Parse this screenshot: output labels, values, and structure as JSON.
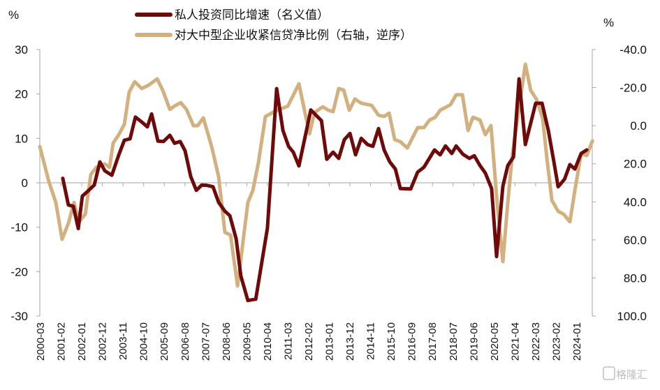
{
  "chart_data": {
    "type": "line",
    "title": "",
    "left_unit": "%",
    "right_unit": "%",
    "y_left": {
      "lim": [
        -30,
        30
      ],
      "ticks": [
        30,
        20,
        10,
        0,
        -10,
        -20,
        -30
      ],
      "tick_labels": [
        "30",
        "20",
        "10",
        "0",
        "-10",
        "-20",
        "-30"
      ]
    },
    "y_right": {
      "lim": [
        -40,
        100
      ],
      "inverted": true,
      "ticks": [
        -40,
        -20,
        0,
        20,
        40,
        60,
        80,
        100
      ],
      "tick_labels": [
        "-40.0",
        "-20.0",
        "0.0",
        "20.0",
        "40.0",
        "60.0",
        "80.0",
        "100.0"
      ]
    },
    "x_tick_labels": [
      "2000-03",
      "2001-02",
      "2002-01",
      "2002-12",
      "2003-11",
      "2004-10",
      "2005-09",
      "2006-08",
      "2007-07",
      "2008-06",
      "2009-05",
      "2010-04",
      "2011-03",
      "2012-02",
      "2013-01",
      "2013-12",
      "2014-11",
      "2015-10",
      "2016-09",
      "2017-08",
      "2018-07",
      "2019-06",
      "2020-05",
      "2021-04",
      "2022-03",
      "2023-02",
      "2024-01"
    ],
    "x_range_years": [
      2000.17,
      2024.71
    ],
    "legend_position": "top-center",
    "series": [
      {
        "name": "私人投资同比增速（名义值）",
        "axis": "left",
        "color": "#6e0a0a",
        "points": [
          [
            2001.16,
            1.0
          ],
          [
            2001.41,
            -5.0
          ],
          [
            2001.63,
            -5.3
          ],
          [
            2001.85,
            -10.3
          ],
          [
            2002.03,
            -3.0
          ],
          [
            2002.25,
            -2.0
          ],
          [
            2002.56,
            -0.5
          ],
          [
            2002.81,
            4.7
          ],
          [
            2003.03,
            2.7
          ],
          [
            2003.34,
            1.7
          ],
          [
            2003.65,
            6.3
          ],
          [
            2003.9,
            9.6
          ],
          [
            2004.15,
            9.9
          ],
          [
            2004.39,
            14.8
          ],
          [
            2004.67,
            13.7
          ],
          [
            2004.92,
            12.6
          ],
          [
            2005.11,
            15.5
          ],
          [
            2005.39,
            9.4
          ],
          [
            2005.64,
            9.3
          ],
          [
            2005.92,
            10.7
          ],
          [
            2006.13,
            8.9
          ],
          [
            2006.38,
            9.3
          ],
          [
            2006.6,
            7.2
          ],
          [
            2006.85,
            1.4
          ],
          [
            2007.1,
            -1.7
          ],
          [
            2007.34,
            -0.5
          ],
          [
            2007.59,
            -0.6
          ],
          [
            2007.84,
            -0.9
          ],
          [
            2008.09,
            -4.4
          ],
          [
            2008.37,
            -6.4
          ],
          [
            2008.59,
            -7.4
          ],
          [
            2008.87,
            -12.6
          ],
          [
            2009.08,
            -21.0
          ],
          [
            2009.39,
            -26.5
          ],
          [
            2009.74,
            -26.2
          ],
          [
            2010.26,
            -10.2
          ],
          [
            2010.67,
            21.2
          ],
          [
            2010.95,
            11.8
          ],
          [
            2011.2,
            8.2
          ],
          [
            2011.41,
            6.9
          ],
          [
            2011.66,
            3.8
          ],
          [
            2012.19,
            16.4
          ],
          [
            2012.66,
            14.0
          ],
          [
            2012.9,
            5.3
          ],
          [
            2013.18,
            6.9
          ],
          [
            2013.43,
            5.5
          ],
          [
            2013.68,
            9.7
          ],
          [
            2013.93,
            11.1
          ],
          [
            2014.18,
            6.3
          ],
          [
            2014.43,
            10.0
          ],
          [
            2014.71,
            8.6
          ],
          [
            2014.95,
            8.2
          ],
          [
            2015.2,
            12.2
          ],
          [
            2015.45,
            7.4
          ],
          [
            2015.7,
            4.7
          ],
          [
            2015.95,
            3.1
          ],
          [
            2016.17,
            -1.3
          ],
          [
            2016.63,
            -1.4
          ],
          [
            2016.94,
            2.4
          ],
          [
            2017.22,
            3.5
          ],
          [
            2017.69,
            7.4
          ],
          [
            2017.94,
            6.3
          ],
          [
            2018.18,
            8.3
          ],
          [
            2018.46,
            6.6
          ],
          [
            2018.65,
            8.3
          ],
          [
            2018.96,
            6.4
          ],
          [
            2019.24,
            5.5
          ],
          [
            2019.46,
            6.1
          ],
          [
            2019.71,
            3.9
          ],
          [
            2019.95,
            2.2
          ],
          [
            2020.23,
            -1.3
          ],
          [
            2020.45,
            -16.6
          ],
          [
            2020.73,
            -0.8
          ],
          [
            2020.95,
            3.9
          ],
          [
            2021.2,
            5.8
          ],
          [
            2021.45,
            23.4
          ],
          [
            2021.73,
            8.6
          ],
          [
            2022.19,
            17.9
          ],
          [
            2022.47,
            17.9
          ],
          [
            2022.75,
            11.8
          ],
          [
            2022.97,
            5.5
          ],
          [
            2023.19,
            -0.9
          ],
          [
            2023.47,
            0.8
          ],
          [
            2023.71,
            4.1
          ],
          [
            2023.93,
            3.1
          ],
          [
            2024.21,
            6.6
          ],
          [
            2024.46,
            7.4
          ]
        ]
      },
      {
        "name": "对大中型企业收紧信贷净比例（右轴，逆序）",
        "axis": "right",
        "color": "#d2b07f",
        "points": [
          [
            2000.14,
            10.9
          ],
          [
            2000.54,
            29.3
          ],
          [
            2000.85,
            40.3
          ],
          [
            2001.13,
            59.7
          ],
          [
            2001.41,
            51.3
          ],
          [
            2001.66,
            40.3
          ],
          [
            2001.88,
            50.5
          ],
          [
            2002.16,
            46.5
          ],
          [
            2002.41,
            25.6
          ],
          [
            2002.65,
            21.9
          ],
          [
            2003.03,
            20.1
          ],
          [
            2003.24,
            21.9
          ],
          [
            2003.4,
            9.1
          ],
          [
            2003.65,
            4.7
          ],
          [
            2003.9,
            -0.8
          ],
          [
            2004.11,
            -17.6
          ],
          [
            2004.36,
            -23.1
          ],
          [
            2004.67,
            -19.5
          ],
          [
            2004.98,
            -21.3
          ],
          [
            2005.36,
            -24.6
          ],
          [
            2005.61,
            -18.4
          ],
          [
            2005.92,
            -8.5
          ],
          [
            2006.13,
            -10.3
          ],
          [
            2006.41,
            -12.1
          ],
          [
            2006.66,
            -8.5
          ],
          [
            2006.97,
            0.0
          ],
          [
            2007.16,
            0.0
          ],
          [
            2007.41,
            -4.1
          ],
          [
            2007.78,
            10.9
          ],
          [
            2008.09,
            26.7
          ],
          [
            2008.37,
            56.0
          ],
          [
            2008.62,
            57.5
          ],
          [
            2008.93,
            84.2
          ],
          [
            2009.39,
            40.3
          ],
          [
            2009.61,
            34.1
          ],
          [
            2009.86,
            19.4
          ],
          [
            2010.17,
            -4.8
          ],
          [
            2010.57,
            -7.4
          ],
          [
            2011.17,
            -10.3
          ],
          [
            2011.66,
            -22.0
          ],
          [
            2012.13,
            4.3
          ],
          [
            2012.31,
            -4.8
          ],
          [
            2012.41,
            -7.4
          ],
          [
            2012.72,
            -9.9
          ],
          [
            2012.97,
            -8.1
          ],
          [
            2013.18,
            -7.4
          ],
          [
            2013.43,
            -19.5
          ],
          [
            2013.65,
            -18.7
          ],
          [
            2013.9,
            -8.1
          ],
          [
            2014.15,
            -14.0
          ],
          [
            2014.43,
            -11.8
          ],
          [
            2014.89,
            -10.7
          ],
          [
            2015.2,
            -5.5
          ],
          [
            2015.45,
            -4.8
          ],
          [
            2015.67,
            -6.6
          ],
          [
            2015.92,
            7.3
          ],
          [
            2016.17,
            8.4
          ],
          [
            2016.48,
            11.7
          ],
          [
            2016.94,
            1.0
          ],
          [
            2017.22,
            1.0
          ],
          [
            2017.47,
            -3.0
          ],
          [
            2017.72,
            -4.4
          ],
          [
            2017.94,
            -8.1
          ],
          [
            2018.4,
            -11.0
          ],
          [
            2018.65,
            -16.2
          ],
          [
            2018.93,
            -16.2
          ],
          [
            2019.18,
            2.5
          ],
          [
            2019.4,
            -4.4
          ],
          [
            2019.71,
            -3.0
          ],
          [
            2019.95,
            4.7
          ],
          [
            2020.2,
            0.0
          ],
          [
            2020.48,
            41.4
          ],
          [
            2020.73,
            71.4
          ],
          [
            2020.95,
            40.3
          ],
          [
            2021.14,
            16.4
          ],
          [
            2021.42,
            -7.4
          ],
          [
            2021.73,
            -32.3
          ],
          [
            2021.97,
            -18.4
          ],
          [
            2022.22,
            -14.0
          ],
          [
            2022.5,
            -3.7
          ],
          [
            2022.69,
            17.2
          ],
          [
            2022.91,
            39.2
          ],
          [
            2023.19,
            45.0
          ],
          [
            2023.43,
            46.5
          ],
          [
            2023.71,
            50.5
          ],
          [
            2023.93,
            34.0
          ],
          [
            2024.21,
            14.6
          ],
          [
            2024.46,
            15.7
          ],
          [
            2024.71,
            8.0
          ]
        ]
      }
    ]
  },
  "watermark": {
    "logo_text": "格隆汇"
  }
}
